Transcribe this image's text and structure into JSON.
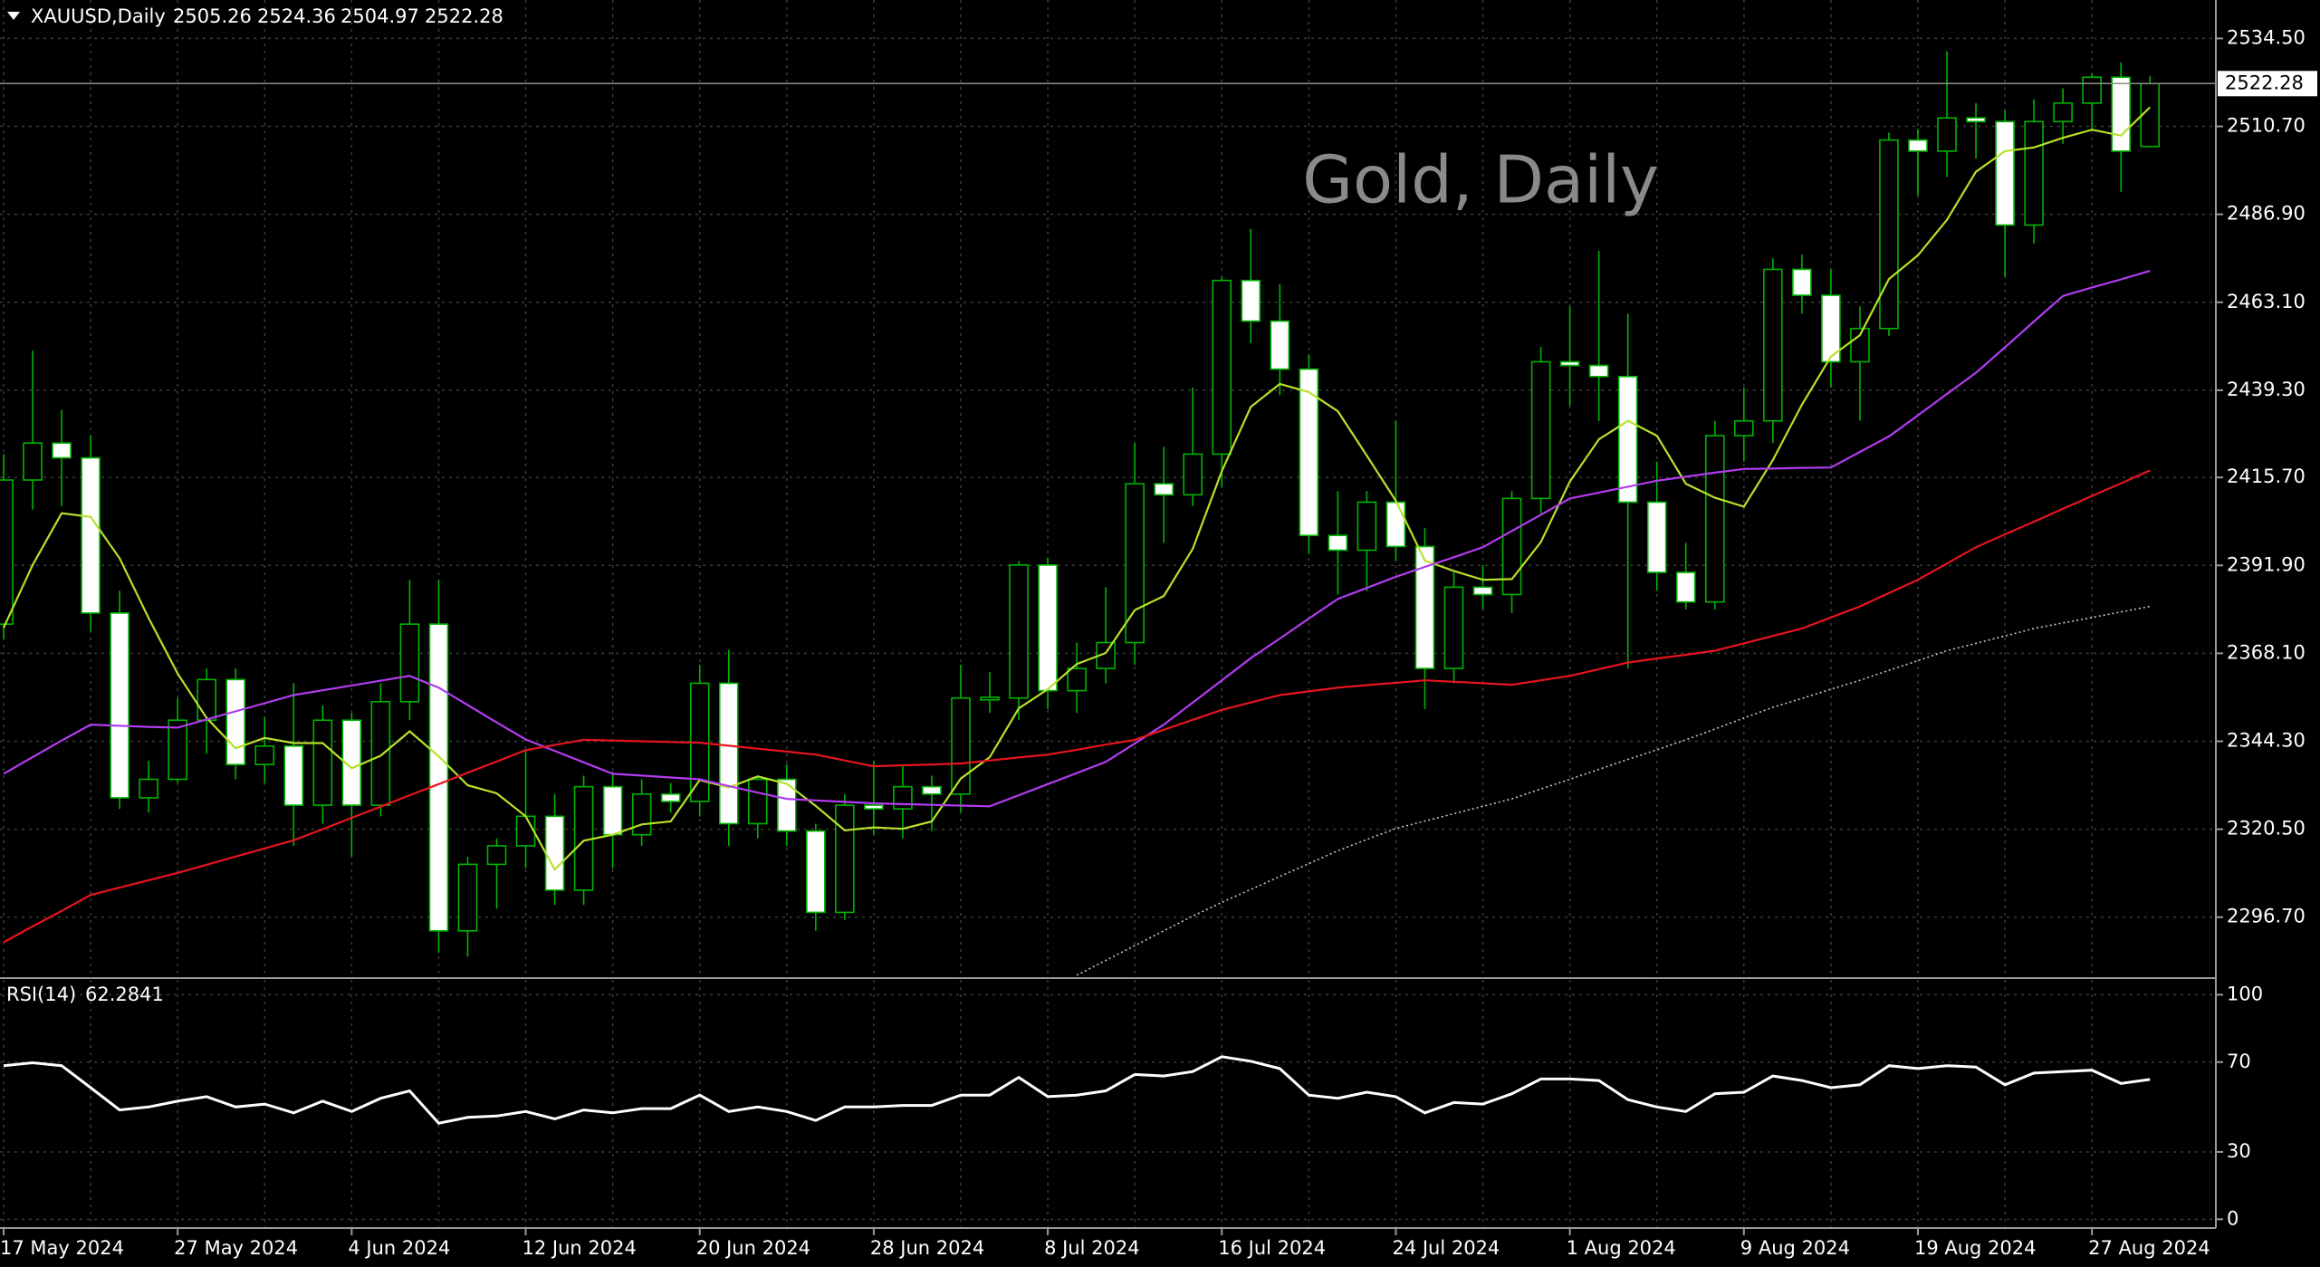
{
  "chart_data": [
    {
      "type": "candlestick",
      "title": "Gold, Daily",
      "symbol": "XAUUSD,Daily",
      "categories": [
        "17 May 2024",
        null,
        null,
        null,
        null,
        null,
        "27 May 2024",
        null,
        null,
        null,
        null,
        null,
        "4 Jun 2024",
        null,
        null,
        null,
        null,
        null,
        "12 Jun 2024",
        null,
        null,
        null,
        null,
        null,
        "20 Jun 2024",
        null,
        null,
        null,
        null,
        null,
        "28 Jun 2024",
        null,
        null,
        null,
        null,
        null,
        "8 Jul 2024",
        null,
        null,
        null,
        null,
        null,
        "16 Jul 2024",
        null,
        null,
        null,
        null,
        null,
        "24 Jul 2024",
        null,
        null,
        null,
        null,
        null,
        "1 Aug 2024",
        null,
        null,
        null,
        null,
        null,
        "9 Aug 2024",
        null,
        null,
        null,
        null,
        null,
        "19 Aug 2024",
        null,
        null,
        null,
        null,
        null,
        "27 Aug 2024",
        null,
        null
      ],
      "open": [
        2376,
        2415,
        2425,
        2421,
        2379,
        2329,
        2334,
        2350,
        2361,
        2338,
        2343,
        2327,
        2350,
        2327,
        2355,
        2376,
        2293,
        2311,
        2316,
        2324,
        2304,
        2332,
        2319,
        2330,
        2328,
        2360,
        2322,
        2334,
        2320,
        2298,
        2327,
        2326,
        2332,
        2330,
        2355.5,
        2356,
        2392,
        2358,
        2364,
        2371,
        2414,
        2411,
        2422,
        2469,
        2458,
        2445,
        2400,
        2396,
        2409,
        2397,
        2364,
        2386,
        2384,
        2410,
        2447,
        2446,
        2443,
        2409,
        2390,
        2382,
        2427,
        2431,
        2472,
        2465,
        2447,
        2456,
        2507,
        2504,
        2513,
        2512,
        2484,
        2512,
        2517,
        2524,
        2505.26
      ],
      "high": [
        2422,
        2450,
        2434,
        2427,
        2385,
        2339,
        2356,
        2364,
        2364,
        2351,
        2360,
        2354,
        2352,
        2360,
        2388,
        2388,
        2313,
        2318,
        2342,
        2330,
        2335,
        2336,
        2334,
        2333,
        2365,
        2369,
        2335,
        2338,
        2322,
        2330,
        2339,
        2338,
        2335,
        2365,
        2363,
        2393,
        2394,
        2371,
        2386,
        2425,
        2424,
        2440,
        2470,
        2483,
        2468,
        2449,
        2412,
        2412,
        2431,
        2402,
        2390,
        2392,
        2412,
        2451,
        2462,
        2477,
        2460,
        2420,
        2398,
        2431,
        2440,
        2475,
        2476,
        2472,
        2462,
        2509,
        2510,
        2531,
        2517,
        2515,
        2518,
        2521,
        2525,
        2528,
        2524.36
      ],
      "low": [
        2372,
        2407,
        2408,
        2374,
        2326,
        2325,
        2333,
        2341,
        2334,
        2333,
        2316,
        2322,
        2313,
        2324,
        2350,
        2287,
        2286,
        2299,
        2310,
        2300,
        2300,
        2310,
        2316,
        2325,
        2324,
        2316,
        2318,
        2316,
        2293,
        2296,
        2319,
        2318,
        2320,
        2325,
        2352,
        2350,
        2353,
        2352,
        2360,
        2365,
        2398,
        2408,
        2413,
        2452,
        2438,
        2395,
        2384,
        2385,
        2393,
        2353,
        2360,
        2380,
        2379,
        2406,
        2435,
        2431,
        2364,
        2385,
        2380,
        2380,
        2420,
        2425,
        2460,
        2440,
        2431,
        2454,
        2492,
        2497,
        2502,
        2470,
        2479,
        2506,
        2510,
        2493,
        2504.97
      ],
      "close": [
        2415,
        2425,
        2421,
        2379,
        2329,
        2334,
        2350,
        2361,
        2338,
        2343,
        2327,
        2350,
        2327,
        2355,
        2376,
        2293,
        2311,
        2316,
        2324,
        2304,
        2332,
        2319,
        2330,
        2328,
        2360,
        2322,
        2334,
        2320,
        2298,
        2327,
        2326,
        2332,
        2330,
        2356,
        2356.2,
        2392,
        2358,
        2364,
        2371,
        2414,
        2411,
        2422,
        2469,
        2458,
        2445,
        2400,
        2396,
        2409,
        2397,
        2364,
        2386,
        2384,
        2410,
        2447,
        2446,
        2443,
        2409,
        2390,
        2382,
        2427,
        2431,
        2472,
        2465,
        2447,
        2456,
        2507,
        2504,
        2513,
        2512,
        2484,
        2512,
        2517,
        2524,
        2504,
        2522.28
      ],
      "up_color": "#000000",
      "down_color": "#ffffff",
      "wick_color": "#00b400",
      "series": [
        {
          "color": "#b8e02a",
          "style": "solid",
          "values": [
            2375,
            2392,
            2406,
            2405,
            2393.8,
            2377.6,
            2362.6,
            2350.6,
            2342.4,
            2345.2,
            2343.8,
            2343.8,
            2337,
            2340.4,
            2347,
            2340.2,
            2332.4,
            2330.2,
            2324,
            2309.6,
            2317.4,
            2319,
            2321.8,
            2322.6,
            2333.8,
            2331.8,
            2334.8,
            2332.8,
            2326.8,
            2320.2,
            2321,
            2320.6,
            2322.6,
            2334.2,
            2340,
            2353.2,
            2358.4,
            2365.2,
            2368.2,
            2379.8,
            2383.6,
            2396.4,
            2417.4,
            2434.8,
            2441,
            2438.8,
            2433.6,
            2421.6,
            2409.4,
            2393.2,
            2390.4,
            2388,
            2388.2,
            2398.2,
            2414.6,
            2426,
            2431,
            2427,
            2414,
            2410.2,
            2407.8,
            2420.4,
            2435.4,
            2448.4,
            2454.2,
            2469.4,
            2475.8,
            2485.4,
            2498.4,
            2504,
            2505,
            2507.6,
            2509.8,
            2508.2,
            2515.86
          ]
        },
        {
          "color": "#b23cf0",
          "style": "solid",
          "values": [
            2335.5,
            2340,
            2344.5,
            2348.8,
            2348.5,
            2348.2,
            2348,
            2350.2,
            2352.4,
            2354.6,
            2356.8,
            2358.1,
            2359.4,
            2360.7,
            2362,
            2358.8,
            2354.1,
            2349.4,
            2344.8,
            2341.7,
            2338.6,
            2335.5,
            2335,
            2334.5,
            2334,
            2332.2,
            2330.4,
            2328.7,
            2328.3,
            2327.9,
            2327.5,
            2327.3,
            2327.1,
            2326.9,
            2326.7,
            2329.7,
            2332.7,
            2335.7,
            2338.7,
            2343.7,
            2348.8,
            2354.8,
            2360.8,
            2366.8,
            2372.1,
            2377.5,
            2382.8,
            2385.8,
            2388.8,
            2391.5,
            2394.1,
            2396.8,
            2401.2,
            2405.6,
            2410,
            2411.6,
            2413.2,
            2414.8,
            2415.9,
            2417,
            2418,
            2418.1,
            2418.3,
            2418.4,
            2422.6,
            2426.8,
            2432.5,
            2438.3,
            2444,
            2450.9,
            2457.9,
            2464.8,
            2467.1,
            2469.3,
            2471.6
          ]
        },
        {
          "color": "#e8141e",
          "style": "solid",
          "values": [
            2289.9,
            2294.2,
            2298.4,
            2302.7,
            2304.7,
            2306.7,
            2308.7,
            2310.9,
            2313.1,
            2315.3,
            2317.5,
            2320.5,
            2323.6,
            2326.6,
            2329.7,
            2332.7,
            2335.8,
            2338.8,
            2341.9,
            2343.3,
            2344.7,
            2344.5,
            2344.3,
            2344.1,
            2343.9,
            2343.1,
            2342.3,
            2341.5,
            2340.7,
            2339.1,
            2337.5,
            2337.8,
            2338,
            2338.3,
            2339.1,
            2339.9,
            2340.7,
            2342,
            2343.4,
            2344.7,
            2347.4,
            2350.1,
            2352.8,
            2354.8,
            2356.8,
            2357.8,
            2358.8,
            2359.5,
            2360.1,
            2360.8,
            2360.4,
            2360,
            2359.6,
            2360.8,
            2362,
            2363.8,
            2365.6,
            2366.7,
            2367.7,
            2368.8,
            2370.8,
            2372.8,
            2374.8,
            2377.8,
            2380.8,
            2384.4,
            2388,
            2392.4,
            2396.8,
            2400.3,
            2403.7,
            2407.2,
            2410.7,
            2414.1,
            2417.6
          ]
        },
        {
          "color": "#c8c8c8",
          "style": "dotted",
          "values": [
            null,
            null,
            null,
            null,
            null,
            null,
            null,
            null,
            null,
            null,
            null,
            null,
            null,
            null,
            null,
            null,
            null,
            null,
            null,
            null,
            null,
            null,
            null,
            null,
            null,
            null,
            null,
            null,
            null,
            null,
            null,
            null,
            null,
            null,
            null,
            null,
            null,
            2281,
            2285,
            2289,
            2293,
            2297,
            2300.7,
            2304.2,
            2307.7,
            2311.2,
            2314.7,
            2317.7,
            2320.7,
            2322.7,
            2324.7,
            2326.7,
            2328.7,
            2331.4,
            2334,
            2336.7,
            2339.4,
            2342,
            2344.7,
            2347.6,
            2350.6,
            2353.5,
            2355.9,
            2358.4,
            2360.8,
            2363.5,
            2366.1,
            2368.8,
            2370.8,
            2372.8,
            2374.8,
            2376.3,
            2377.8,
            2379.3,
            2380.8
          ]
        }
      ],
      "ylim": [
        2280.7,
        2544.9
      ],
      "yticks": [
        {
          "value": 2534.5,
          "label": "2534.50"
        },
        {
          "value": 2510.7,
          "label": "2510.70"
        },
        {
          "value": 2486.9,
          "label": "2486.90"
        },
        {
          "value": 2463.1,
          "label": "2463.10"
        },
        {
          "value": 2439.3,
          "label": "2439.30"
        },
        {
          "value": 2415.7,
          "label": "2415.70"
        },
        {
          "value": 2391.9,
          "label": "2391.90"
        },
        {
          "value": 2368.1,
          "label": "2368.10"
        },
        {
          "value": 2344.3,
          "label": "2344.30"
        },
        {
          "value": 2320.5,
          "label": "2320.50"
        },
        {
          "value": 2296.7,
          "label": "2296.70"
        }
      ],
      "grid": true
    },
    {
      "type": "line",
      "series": [
        {
          "name": "RSI(14)",
          "color": "#ffffff",
          "values": [
            68.4,
            69.7,
            68.4,
            58.6,
            48.7,
            50,
            52.6,
            54.6,
            50,
            51.3,
            47.4,
            52.6,
            48,
            53.9,
            57.2,
            42.8,
            45.4,
            46,
            48,
            44.7,
            48.7,
            47.4,
            49.3,
            49.3,
            55.3,
            48,
            50,
            48,
            44,
            50,
            50,
            50.7,
            50.7,
            55.3,
            55.3,
            63.2,
            54.6,
            55.3,
            57.2,
            64.5,
            63.8,
            65.8,
            72.4,
            70.4,
            67.1,
            55.3,
            53.9,
            56.6,
            54.6,
            47.4,
            52,
            51.3,
            55.9,
            62.5,
            62.5,
            61.8,
            53.3,
            50,
            48,
            55.9,
            56.6,
            63.8,
            61.8,
            58.6,
            59.9,
            68.4,
            67.1,
            68.4,
            67.8,
            59.9,
            65.1,
            65.8,
            66.4,
            60.5,
            62.2841
          ]
        }
      ],
      "ylim": [
        -3.9,
        106.6
      ],
      "yticks": [
        100,
        70,
        30,
        0
      ],
      "grid": true
    }
  ]
}
